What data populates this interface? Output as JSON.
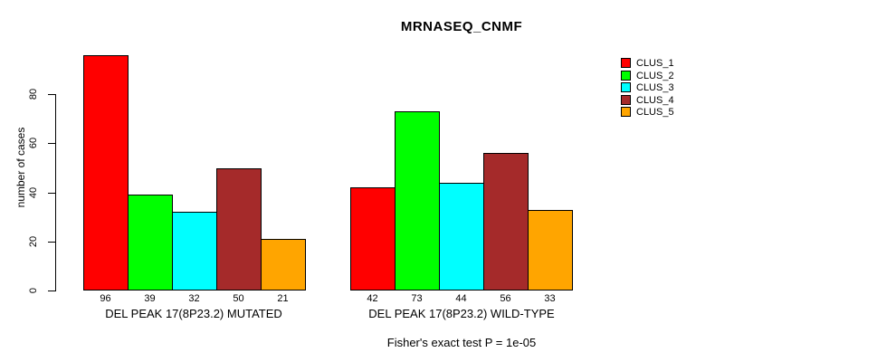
{
  "chart_data": {
    "type": "bar",
    "title": "MRNASEQ_CNMF",
    "ylabel": "number of cases",
    "xlabel": "",
    "yticks": [
      0,
      20,
      40,
      60,
      80
    ],
    "ylim": [
      0,
      96
    ],
    "grid": false,
    "legend_position": "top-right",
    "bar_border_color": "#000000",
    "categories": [
      "DEL PEAK 17(8P23.2) MUTATED",
      "DEL PEAK 17(8P23.2) WILD-TYPE"
    ],
    "series": [
      {
        "name": "CLUS_1",
        "color": "#FF0000",
        "values": [
          96,
          42
        ]
      },
      {
        "name": "CLUS_2",
        "color": "#00FF00",
        "values": [
          39,
          73
        ]
      },
      {
        "name": "CLUS_3",
        "color": "#00FFFF",
        "values": [
          32,
          44
        ]
      },
      {
        "name": "CLUS_4",
        "color": "#A52A2A",
        "values": [
          50,
          56
        ]
      },
      {
        "name": "CLUS_5",
        "color": "#FFA500",
        "values": [
          21,
          33
        ]
      }
    ],
    "bar_value_labels": [
      [
        96,
        39,
        32,
        50,
        21
      ],
      [
        42,
        73,
        44,
        56,
        33
      ]
    ],
    "annotation": "Fisher's exact test P = 1e-05"
  }
}
